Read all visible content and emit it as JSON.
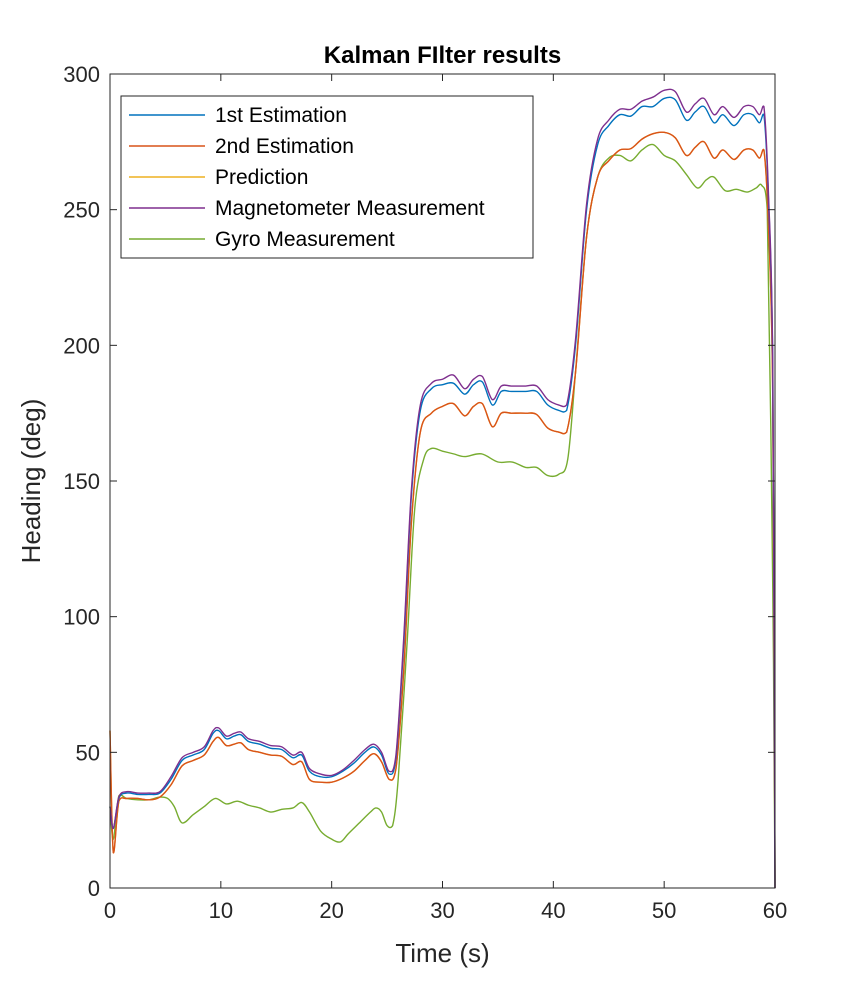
{
  "chart_data": {
    "type": "line",
    "title": "Kalman FIlter results",
    "xlabel": "Time (s)",
    "ylabel": "Heading (deg)",
    "xlim": [
      0,
      60
    ],
    "ylim": [
      0,
      300
    ],
    "xticks": [
      0,
      10,
      20,
      30,
      40,
      50,
      60
    ],
    "yticks": [
      0,
      50,
      100,
      150,
      200,
      250,
      300
    ],
    "grid": false,
    "legend_position": "top-left",
    "series": [
      {
        "name": "1st Estimation",
        "color": "#0072BD",
        "x": [
          0,
          0.3,
          0.8,
          1.5,
          2.5,
          3.5,
          4.5,
          5.5,
          6.5,
          7.5,
          8.5,
          9.3,
          9.8,
          10.5,
          11.2,
          11.8,
          12.5,
          13.5,
          14.5,
          15.5,
          16.5,
          17.3,
          18,
          19,
          20,
          21,
          22,
          23,
          23.8,
          24.5,
          25.2,
          25.8,
          26.5,
          27.2,
          28,
          29,
          30,
          31,
          32,
          32.8,
          33.6,
          34.5,
          35.3,
          36.2,
          37.5,
          38.5,
          39.5,
          40.5,
          41.2,
          42,
          43,
          44,
          45,
          46,
          47,
          48,
          49,
          50,
          51,
          52,
          52.8,
          53.6,
          54.5,
          55.3,
          56.3,
          57.2,
          58,
          58.6,
          59,
          59.4,
          59.8,
          60
        ],
        "values": [
          30,
          22,
          33,
          35,
          34.5,
          34.5,
          35,
          40,
          47,
          49,
          51,
          57,
          58,
          55,
          56,
          56.5,
          54,
          53,
          51.5,
          51,
          48,
          49,
          43,
          41,
          41,
          43,
          46,
          50,
          52,
          49,
          42,
          48,
          90,
          145,
          176,
          184,
          185.5,
          186,
          182,
          185.5,
          186.5,
          178,
          183,
          183,
          183,
          183,
          178,
          176,
          176,
          200,
          250,
          274,
          281,
          285,
          284.5,
          288,
          288,
          291,
          290.5,
          283,
          286,
          288,
          282,
          285,
          281,
          285,
          285,
          282,
          285,
          255,
          190,
          0
        ]
      },
      {
        "name": "2nd Estimation",
        "color": "#D95319",
        "x": [
          0,
          0.3,
          0.8,
          1.5,
          2.5,
          3.5,
          4.5,
          5.5,
          6.5,
          7.5,
          8.5,
          9.3,
          9.8,
          10.5,
          11.2,
          11.8,
          12.5,
          13.5,
          14.5,
          15.5,
          16.5,
          17.3,
          18,
          19,
          20,
          21,
          22,
          23,
          23.8,
          24.5,
          25.2,
          25.8,
          26.5,
          27.2,
          28,
          29,
          30,
          31,
          32,
          32.8,
          33.6,
          34.5,
          35.3,
          36.2,
          37.5,
          38.5,
          39.5,
          40.5,
          41.2,
          42,
          43,
          44,
          45,
          46,
          47,
          48,
          49,
          50,
          51,
          52,
          52.8,
          53.6,
          54.5,
          55.3,
          56.3,
          57.2,
          58,
          58.6,
          59,
          59.4,
          59.8,
          60
        ],
        "values": [
          58,
          13,
          32,
          33,
          33,
          32.5,
          33.5,
          38,
          45,
          47,
          49,
          54,
          55.5,
          52.5,
          53,
          53.5,
          51,
          50,
          49,
          48.5,
          45.5,
          46.5,
          40,
          39,
          39,
          40.5,
          43,
          47,
          49.5,
          46.5,
          40,
          44,
          80,
          135,
          168,
          175,
          177.5,
          178.5,
          174,
          177.5,
          178.5,
          170,
          175,
          175,
          175,
          174.5,
          169.5,
          168,
          168,
          190,
          240,
          262,
          268,
          272,
          272.5,
          276,
          278,
          278.5,
          276.5,
          270,
          273,
          275,
          269,
          272,
          268.5,
          272,
          272,
          269,
          272,
          245,
          180,
          0
        ]
      },
      {
        "name": "Prediction",
        "color": "#EDB120",
        "x": [
          0,
          0.3,
          0.8,
          1.5,
          2.5,
          3.5,
          4.5,
          5.5,
          6.5,
          7.5,
          8.5,
          9.3,
          9.8,
          10.5,
          11.2,
          11.8,
          12.5,
          13.5,
          14.5,
          15.5,
          16.5,
          17.3,
          18,
          19,
          20,
          21,
          22,
          23,
          23.8,
          24.5,
          25.2,
          25.8,
          26.5,
          27.2,
          28,
          29,
          30,
          31,
          32,
          32.8,
          33.6,
          34.5,
          35.3,
          36.2,
          37.5,
          38.5,
          39.5,
          40.5,
          41.2,
          42,
          43,
          44,
          45,
          46,
          47,
          48,
          49,
          50,
          51,
          52,
          52.8,
          53.6,
          54.5,
          55.3,
          56.3,
          57.2,
          58,
          58.6,
          59,
          59.4,
          59.8,
          60
        ],
        "values": [
          58,
          13,
          32,
          33,
          33,
          32.5,
          33.5,
          38,
          45,
          47,
          49,
          54,
          55.5,
          52.5,
          53,
          53.5,
          51,
          50,
          49,
          48.5,
          45.5,
          46.5,
          40,
          39,
          39,
          40.5,
          43,
          47,
          49.5,
          46.5,
          40,
          44,
          80,
          135,
          168,
          175,
          177.5,
          178.5,
          174,
          177.5,
          178.5,
          170,
          175,
          175,
          175,
          174.5,
          169.5,
          168,
          168,
          190,
          240,
          262,
          268,
          272,
          272.5,
          276,
          278,
          278.5,
          276.5,
          270,
          273,
          275,
          269,
          272,
          268.5,
          272,
          272,
          269,
          272,
          245,
          180,
          0
        ]
      },
      {
        "name": "Magnetometer Measurement",
        "color": "#7E2F8E",
        "x": [
          0,
          0.3,
          0.8,
          1.5,
          2.5,
          3.5,
          4.5,
          5.5,
          6.5,
          7.5,
          8.5,
          9.3,
          9.8,
          10.5,
          11.2,
          11.8,
          12.5,
          13.5,
          14.5,
          15.5,
          16.5,
          17.3,
          18,
          19,
          20,
          21,
          22,
          23,
          23.8,
          24.5,
          25.2,
          25.8,
          26.5,
          27.2,
          28,
          29,
          30,
          31,
          32,
          32.8,
          33.6,
          34.5,
          35.3,
          36.2,
          37.5,
          38.5,
          39.5,
          40.5,
          41.2,
          42,
          43,
          44,
          45,
          46,
          47,
          48,
          49,
          50,
          51,
          52,
          52.8,
          53.6,
          54.5,
          55.3,
          56.3,
          57.2,
          58,
          58.6,
          59,
          59.4,
          59.8,
          60
        ],
        "values": [
          30,
          22,
          33.5,
          35.5,
          35,
          35,
          35.5,
          41,
          48,
          50,
          52,
          58,
          59,
          56,
          57,
          57.5,
          55,
          54,
          52.5,
          52,
          49,
          50,
          44,
          42,
          41.5,
          43.5,
          47,
          51,
          53,
          50,
          43,
          49,
          92,
          147,
          178,
          186,
          187.5,
          189,
          184,
          187.5,
          188.5,
          180,
          185,
          185,
          185,
          185,
          180,
          178,
          178,
          202,
          252,
          276,
          283,
          287,
          287,
          290,
          291.5,
          294,
          293.5,
          286,
          289,
          291,
          285,
          288,
          284,
          288,
          288,
          285,
          288,
          257,
          192,
          0
        ]
      },
      {
        "name": "Gyro Measurement",
        "color": "#77AC30",
        "x": [
          0,
          0.3,
          0.8,
          1.5,
          2.5,
          3.5,
          4.5,
          5.2,
          5.8,
          6.5,
          7.5,
          8.5,
          9.5,
          10.5,
          11.5,
          12.5,
          13.5,
          14.5,
          15.5,
          16.5,
          17.3,
          18,
          19,
          20,
          20.8,
          21.5,
          22.5,
          23.5,
          24,
          24.5,
          25,
          25.5,
          26,
          26.8,
          27.5,
          28.3,
          29,
          30,
          31,
          32,
          33.5,
          35,
          36.3,
          37.5,
          38.5,
          39.5,
          40.5,
          41.3,
          42,
          43,
          44,
          45,
          46,
          47,
          48,
          49,
          50,
          51,
          52,
          53,
          53.8,
          54.5,
          55.5,
          56.5,
          57.5,
          58.3,
          58.8,
          59.3,
          59.8,
          60
        ],
        "values": [
          30,
          18,
          34,
          33,
          32.5,
          32.5,
          33.5,
          33,
          30,
          24,
          27,
          30,
          33,
          31,
          32,
          30.5,
          29.5,
          28,
          29,
          29.5,
          31.5,
          28,
          21,
          18,
          17,
          20,
          24,
          28,
          29.5,
          28,
          23,
          23,
          40,
          90,
          140,
          158,
          162,
          161,
          160,
          159,
          160,
          157,
          157,
          155,
          155,
          152,
          152.5,
          158,
          190,
          240,
          262,
          269,
          270,
          268,
          272,
          274,
          270,
          268,
          263,
          258,
          261,
          262,
          257,
          257.5,
          256.5,
          258,
          259,
          250,
          110,
          0
        ]
      }
    ]
  }
}
